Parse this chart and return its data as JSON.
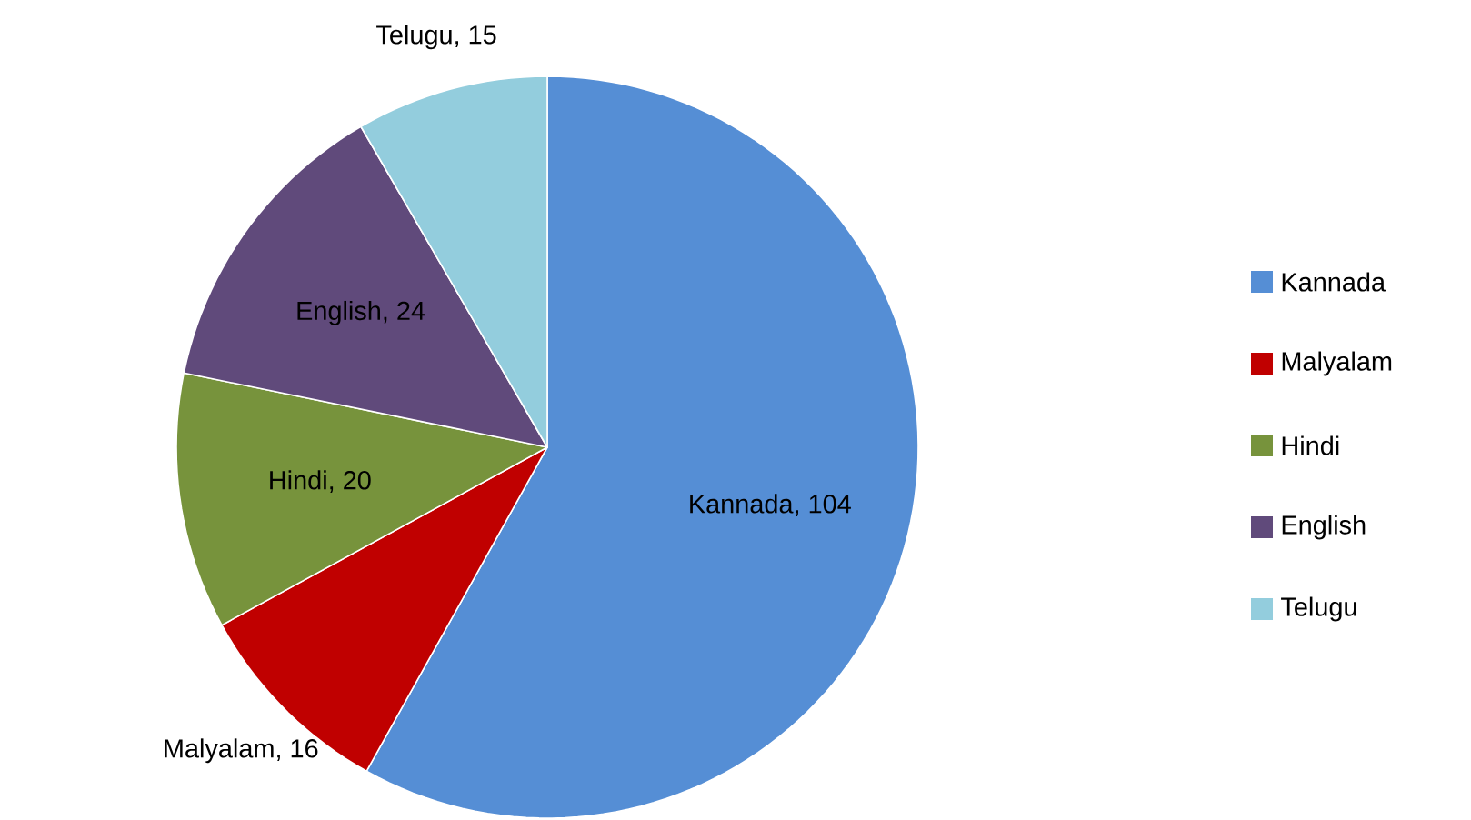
{
  "chart_data": {
    "type": "pie",
    "categories": [
      "Kannada",
      "Malyalam",
      "Hindi",
      "English",
      "Telugu"
    ],
    "values": [
      104,
      16,
      20,
      24,
      15
    ],
    "colors": [
      "#558ed5",
      "#c00000",
      "#77933c",
      "#604a7b",
      "#93cddd"
    ],
    "value_labels": [
      ", 104",
      ", 16",
      ", 20",
      ", 24",
      ", 15"
    ],
    "legend": "right"
  }
}
